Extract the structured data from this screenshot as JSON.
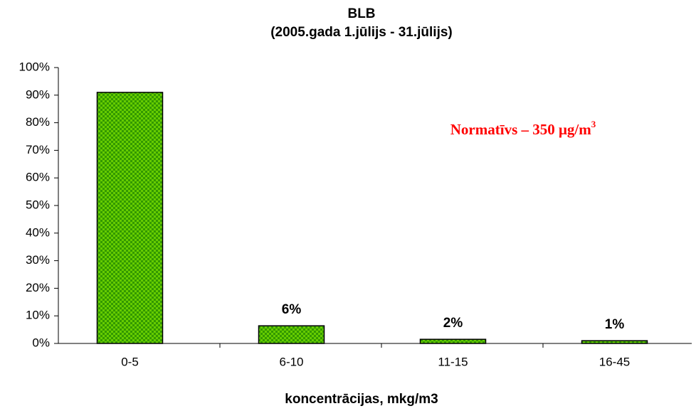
{
  "chart_data": {
    "type": "bar",
    "title": "BLB",
    "subtitle": "(2005.gada 1.jūlijs - 31.jūlijs)",
    "x_label": "koncentrācijas, mkg/m3",
    "annotation": {
      "text": "Normatīvs – 350 μg/m",
      "sup": "3"
    },
    "categories": [
      "0-5",
      "6-10",
      "11-15",
      "16-45"
    ],
    "values": [
      91,
      6.4,
      1.5,
      1
    ],
    "value_labels": [
      null,
      "6%",
      "2%",
      "1%"
    ],
    "color": "#66cc00",
    "ylim": [
      0,
      100
    ],
    "yticks": [
      {
        "value": 0,
        "label": "0%"
      },
      {
        "value": 10,
        "label": "10%"
      },
      {
        "value": 20,
        "label": "20%"
      },
      {
        "value": 30,
        "label": "30%"
      },
      {
        "value": 40,
        "label": "40%"
      },
      {
        "value": 50,
        "label": "50%"
      },
      {
        "value": 60,
        "label": "60%"
      },
      {
        "value": 70,
        "label": "70%"
      },
      {
        "value": 80,
        "label": "80%"
      },
      {
        "value": 90,
        "label": "90%"
      },
      {
        "value": 100,
        "label": "100%"
      }
    ],
    "grid": false
  }
}
